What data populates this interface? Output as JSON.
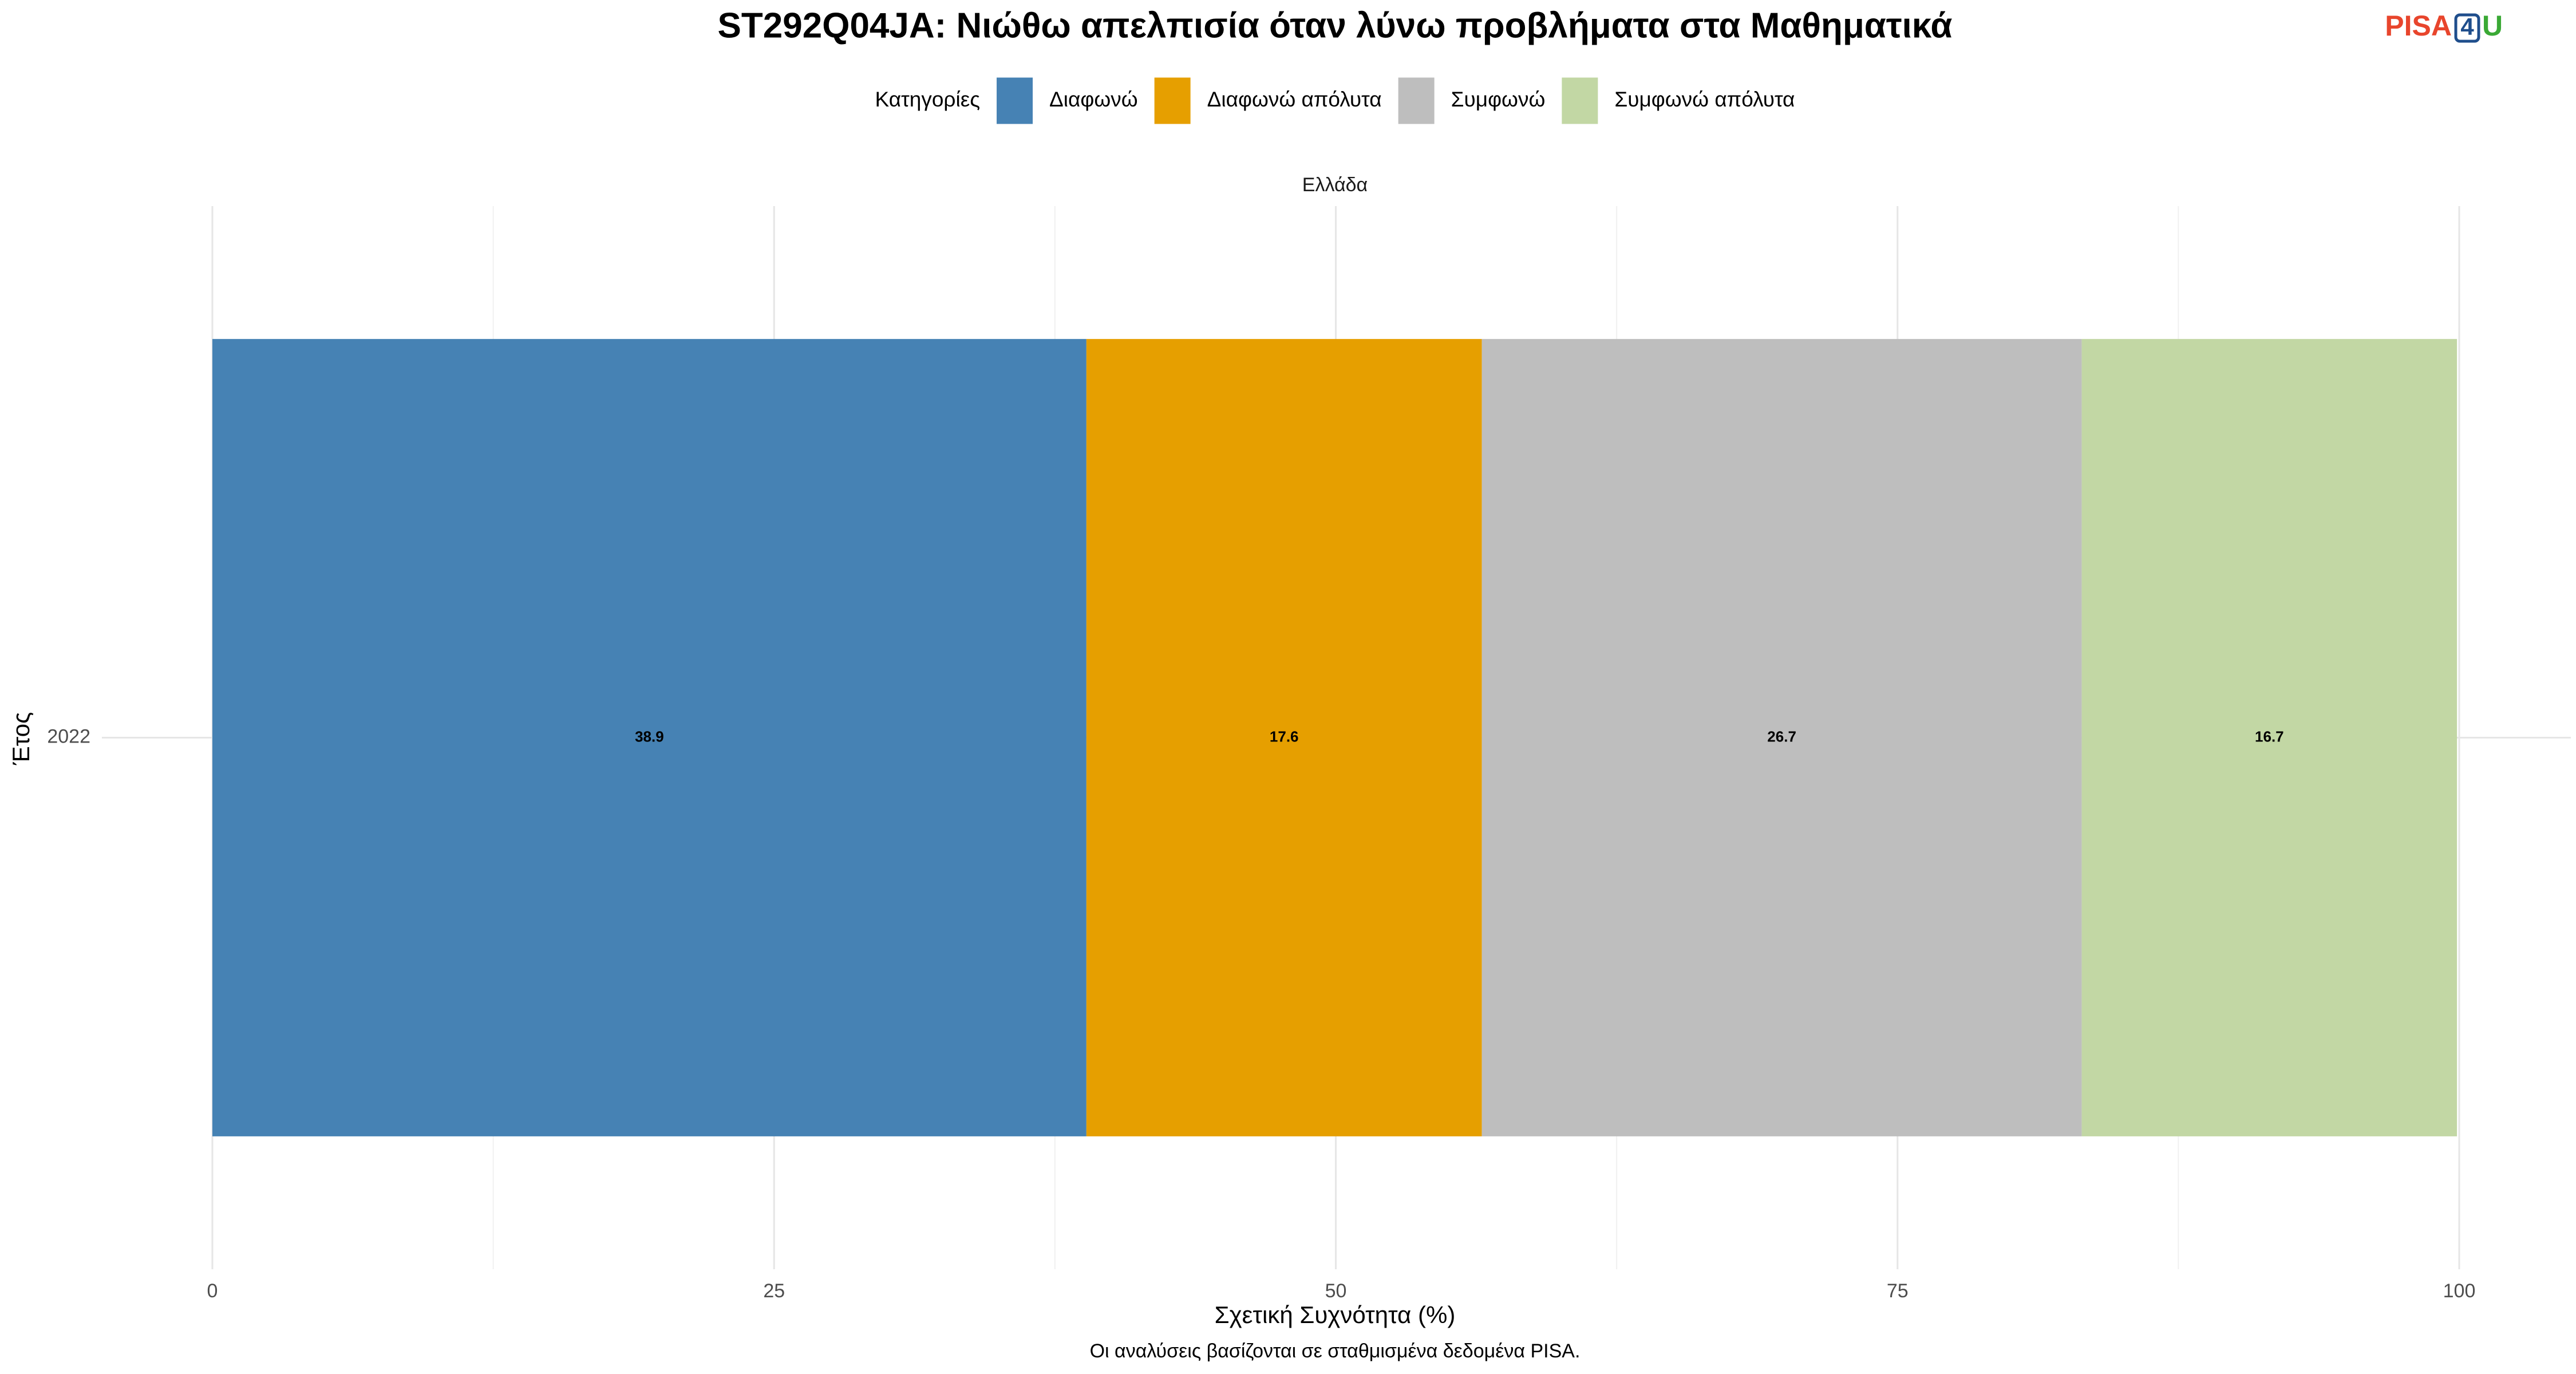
{
  "chart_data": {
    "type": "stacked-bar-horizontal",
    "title": "ST292Q04JA: Νιώθω απελπισία όταν λύνω προβλήματα στα Μαθηματικά",
    "logo": {
      "pisa": "PISA",
      "four": "4",
      "u": "U"
    },
    "legend_title": "Κατηγορίες",
    "facet": "Ελλάδα",
    "x_label": "Σχετική Συχνότητα (%)",
    "y_label": "Έτος",
    "caption": "Οι αναλύσεις βασίζονται σε σταθμισμένα δεδομένα PISA.",
    "categories": [
      "2022"
    ],
    "series": [
      {
        "name": "Διαφωνώ",
        "color": "#4682b4",
        "values": [
          38.9
        ]
      },
      {
        "name": "Διαφωνώ απόλυτα",
        "color": "#e69f00",
        "values": [
          17.6
        ]
      },
      {
        "name": "Συμφωνώ",
        "color": "#bebebe",
        "values": [
          26.7
        ]
      },
      {
        "name": "Συμφωνώ απόλυτα",
        "color": "#c2d7a4",
        "values": [
          16.7
        ]
      }
    ],
    "xlim": [
      0,
      100
    ],
    "xticks": [
      0,
      25,
      50,
      75,
      100
    ],
    "grid": true,
    "legend": "top"
  }
}
